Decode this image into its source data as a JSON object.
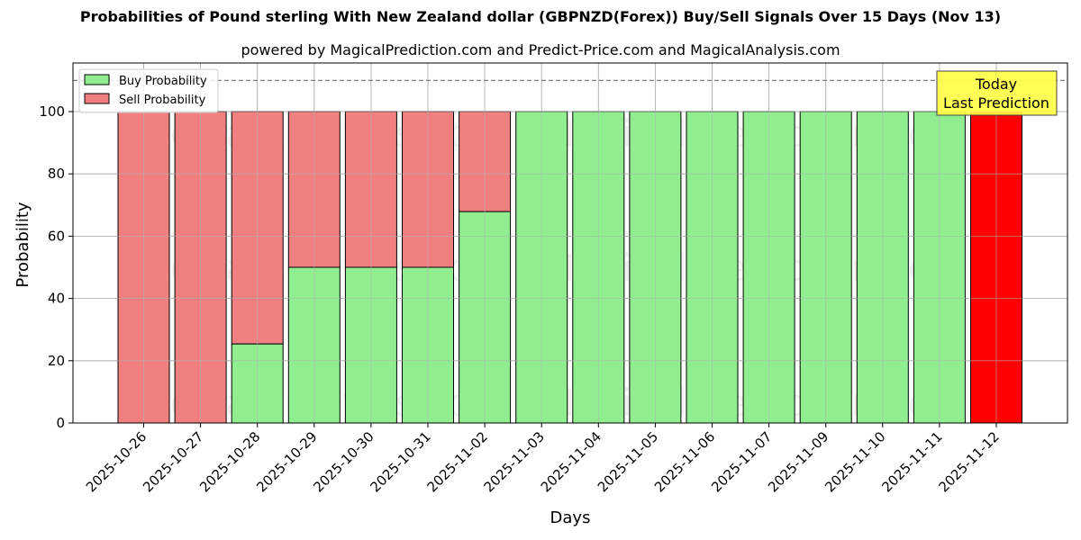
{
  "chart_data": {
    "type": "bar",
    "stacked": true,
    "title": "Probabilities of Pound sterling With New Zealand dollar (GBPNZD(Forex)) Buy/Sell Signals Over 15 Days (Nov 13)",
    "subtitle": "powered by MagicalPrediction.com and Predict-Price.com and MagicalAnalysis.com",
    "xlabel": "Days",
    "ylabel": "Probability",
    "ylim": [
      0,
      115
    ],
    "yticks": [
      0,
      20,
      40,
      60,
      80,
      100
    ],
    "grid": true,
    "legend_position": "upper left",
    "categories": [
      "2025-10-26",
      "2025-10-27",
      "2025-10-28",
      "2025-10-29",
      "2025-10-30",
      "2025-10-31",
      "2025-11-02",
      "2025-11-03",
      "2025-11-04",
      "2025-11-05",
      "2025-11-06",
      "2025-11-07",
      "2025-11-09",
      "2025-11-10",
      "2025-11-11",
      "2025-11-12"
    ],
    "series": [
      {
        "name": "Buy Probability",
        "color": "#90ee90",
        "values": [
          0,
          0,
          25.4,
          50,
          50,
          50,
          67.9,
          100,
          100,
          100,
          100,
          100,
          100,
          100,
          100,
          0
        ]
      },
      {
        "name": "Sell Probability",
        "color": "#f08080",
        "values": [
          100,
          100,
          74.6,
          50,
          50,
          50,
          32.1,
          0,
          0,
          0,
          0,
          0,
          0,
          0,
          0,
          100
        ]
      }
    ],
    "highlight": {
      "index": 15,
      "color": "#ff0000",
      "label": "Today\nLast Prediction",
      "box_color": "#ffff44"
    },
    "reference_line": {
      "y": 110,
      "style": "dashed",
      "color": "#808080"
    },
    "watermarks": [
      "MagicalAnalysis.com",
      "MagicalPrediction.com"
    ]
  },
  "legend": {
    "buy_label": "Buy Probability",
    "sell_label": "Sell Probability"
  },
  "annotation": {
    "line1": "Today",
    "line2": "Last Prediction"
  }
}
